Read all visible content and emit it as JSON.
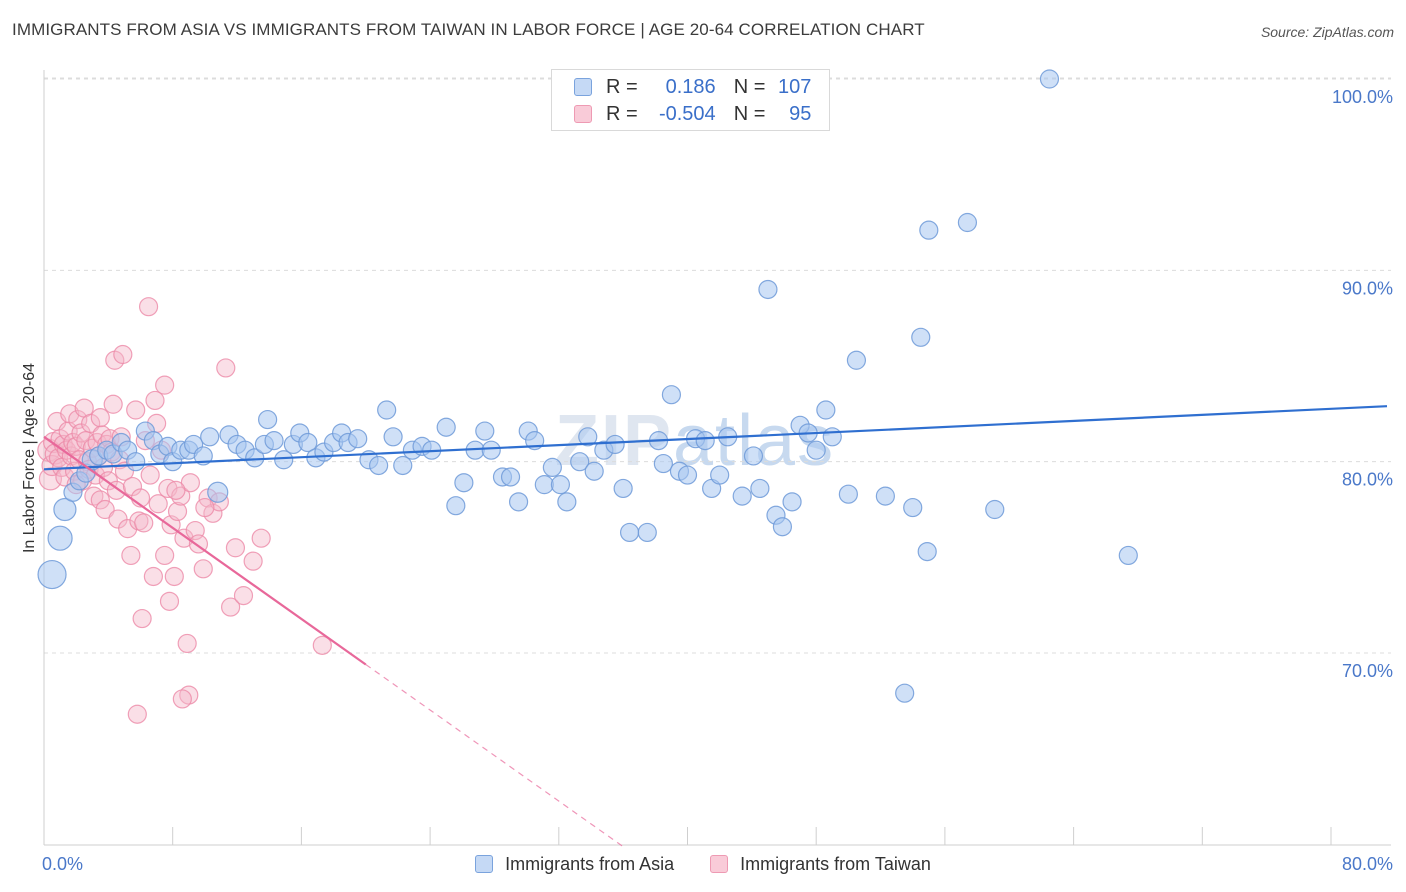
{
  "title": "IMMIGRANTS FROM ASIA VS IMMIGRANTS FROM TAIWAN IN LABOR FORCE | AGE 20-64 CORRELATION CHART",
  "source": "Source: ZipAtlas.com",
  "watermark": {
    "part1": "ZIP",
    "part2": "atlas"
  },
  "legend": {
    "rows": [
      {
        "r_label": "R =",
        "r_value": "0.186",
        "n_label": "N =",
        "n_value": "107",
        "color": "#a8c6f0"
      },
      {
        "r_label": "R =",
        "r_value": "-0.504",
        "n_label": "N =",
        "n_value": "95",
        "color": "#f5b7c9"
      }
    ]
  },
  "bottom_legend": [
    "Immigrants from Asia",
    "Immigrants from Taiwan"
  ],
  "colors": {
    "asia_fill": "#a8c6f0",
    "asia_stroke": "#6f9ad8",
    "asia_line": "#2f6fd0",
    "taiwan_fill": "#f5b7c9",
    "taiwan_stroke": "#ec8aa8",
    "taiwan_line": "#e8689a",
    "tick_text": "#4a78c9",
    "grid": "#dcdcdc"
  },
  "chart_data": {
    "type": "scatter",
    "title": "IMMIGRANTS FROM ASIA VS IMMIGRANTS FROM TAIWAN IN LABOR FORCE | AGE 20-64 CORRELATION CHART",
    "xlabel": "",
    "ylabel": "In Labor Force | Age 20-64",
    "xlim": [
      0,
      80
    ],
    "ylim": [
      60.5,
      101.5
    ],
    "x_ticks_labeled": [
      "0.0%",
      "80.0%"
    ],
    "y_ticks": [
      70,
      80,
      90,
      100
    ],
    "y_tick_labels": [
      "70.0%",
      "80.0%",
      "90.0%",
      "100.0%"
    ],
    "grid": "horizontal dashed",
    "legend_position": "top-center",
    "series": [
      {
        "name": "Immigrants from Asia",
        "R": 0.186,
        "N": 107,
        "trend": {
          "x": [
            0,
            80
          ],
          "y": [
            79.6,
            82.9
          ],
          "dashed_x": []
        },
        "points": [
          [
            0.5,
            74.1,
            14
          ],
          [
            1.0,
            76.0,
            12
          ],
          [
            1.3,
            77.5,
            11
          ],
          [
            1.8,
            78.4,
            9
          ],
          [
            2.2,
            79.0,
            9
          ],
          [
            2.6,
            79.4,
            9
          ],
          [
            3.0,
            80.1,
            10
          ],
          [
            3.4,
            80.3,
            9
          ],
          [
            3.9,
            80.6,
            9
          ],
          [
            4.3,
            80.4,
            9
          ],
          [
            4.8,
            81.0,
            9
          ],
          [
            5.2,
            80.6,
            9
          ],
          [
            5.7,
            80.0,
            9
          ],
          [
            6.3,
            81.6,
            9
          ],
          [
            6.8,
            81.1,
            9
          ],
          [
            7.2,
            80.4,
            9
          ],
          [
            7.7,
            80.8,
            9
          ],
          [
            8.0,
            80.0,
            9
          ],
          [
            8.5,
            80.6,
            9
          ],
          [
            9.0,
            80.6,
            9
          ],
          [
            9.3,
            80.9,
            9
          ],
          [
            9.9,
            80.3,
            9
          ],
          [
            10.3,
            81.3,
            9
          ],
          [
            10.8,
            78.4,
            10
          ],
          [
            11.5,
            81.4,
            9
          ],
          [
            12.0,
            80.9,
            9
          ],
          [
            12.5,
            80.6,
            9
          ],
          [
            13.1,
            80.2,
            9
          ],
          [
            13.7,
            80.9,
            9
          ],
          [
            13.9,
            82.2,
            9
          ],
          [
            14.3,
            81.1,
            9
          ],
          [
            14.9,
            80.1,
            9
          ],
          [
            15.5,
            80.9,
            9
          ],
          [
            15.9,
            81.5,
            9
          ],
          [
            16.4,
            81.0,
            9
          ],
          [
            16.9,
            80.2,
            9
          ],
          [
            17.4,
            80.5,
            9
          ],
          [
            18.0,
            81.0,
            9
          ],
          [
            18.5,
            81.5,
            9
          ],
          [
            18.9,
            81.0,
            9
          ],
          [
            19.5,
            81.2,
            9
          ],
          [
            20.2,
            80.1,
            9
          ],
          [
            20.8,
            79.8,
            9
          ],
          [
            21.3,
            82.7,
            9
          ],
          [
            21.7,
            81.3,
            9
          ],
          [
            22.3,
            79.8,
            9
          ],
          [
            22.9,
            80.6,
            9
          ],
          [
            23.5,
            80.8,
            9
          ],
          [
            24.1,
            80.6,
            9
          ],
          [
            25.0,
            81.8,
            9
          ],
          [
            25.6,
            77.7,
            9
          ],
          [
            26.1,
            78.9,
            9
          ],
          [
            26.8,
            80.6,
            9
          ],
          [
            27.4,
            81.6,
            9
          ],
          [
            27.8,
            80.6,
            9
          ],
          [
            28.5,
            79.2,
            9
          ],
          [
            29.0,
            79.2,
            9
          ],
          [
            29.5,
            77.9,
            9
          ],
          [
            30.1,
            81.6,
            9
          ],
          [
            30.5,
            81.1,
            9
          ],
          [
            31.1,
            78.8,
            9
          ],
          [
            31.6,
            79.7,
            9
          ],
          [
            32.1,
            78.8,
            9
          ],
          [
            32.5,
            77.9,
            9
          ],
          [
            33.3,
            80.0,
            9
          ],
          [
            33.8,
            81.3,
            9
          ],
          [
            34.2,
            79.5,
            9
          ],
          [
            34.8,
            80.6,
            9
          ],
          [
            35.5,
            80.9,
            9
          ],
          [
            36.0,
            78.6,
            9
          ],
          [
            36.4,
            76.3,
            9
          ],
          [
            37.5,
            76.3,
            9
          ],
          [
            38.2,
            81.1,
            9
          ],
          [
            38.5,
            79.9,
            9
          ],
          [
            39.0,
            83.5,
            9
          ],
          [
            39.5,
            79.5,
            9
          ],
          [
            40.0,
            79.3,
            9
          ],
          [
            40.5,
            81.2,
            9
          ],
          [
            41.1,
            81.1,
            9
          ],
          [
            41.5,
            78.6,
            9
          ],
          [
            42.0,
            79.3,
            9
          ],
          [
            42.5,
            81.3,
            9
          ],
          [
            43.4,
            78.2,
            9
          ],
          [
            44.1,
            80.3,
            9
          ],
          [
            44.5,
            78.6,
            9
          ],
          [
            45.0,
            89.0,
            9
          ],
          [
            45.5,
            77.2,
            9
          ],
          [
            45.9,
            76.6,
            9
          ],
          [
            46.5,
            77.9,
            9
          ],
          [
            47.0,
            81.9,
            9
          ],
          [
            47.5,
            81.5,
            9
          ],
          [
            48.0,
            80.6,
            9
          ],
          [
            48.6,
            82.7,
            9
          ],
          [
            49.0,
            81.3,
            9
          ],
          [
            50.0,
            78.3,
            9
          ],
          [
            50.5,
            85.3,
            9
          ],
          [
            52.3,
            78.2,
            9
          ],
          [
            54.0,
            77.6,
            9
          ],
          [
            54.5,
            86.5,
            9
          ],
          [
            55.0,
            92.1,
            9
          ],
          [
            53.5,
            67.9,
            9
          ],
          [
            54.9,
            75.3,
            9
          ],
          [
            57.4,
            92.5,
            9
          ],
          [
            59.1,
            77.5,
            9
          ],
          [
            48.2,
            100.0,
            9
          ],
          [
            62.5,
            100.0,
            9
          ],
          [
            67.4,
            75.1,
            9
          ]
        ]
      },
      {
        "name": "Immigrants from Taiwan",
        "R": -0.504,
        "N": 95,
        "trend": {
          "x": [
            0,
            20
          ],
          "y": [
            81.3,
            69.4
          ],
          "dashed_x": [
            20,
            36
          ]
        },
        "points": [
          [
            0.3,
            80.6,
            11
          ],
          [
            0.4,
            79.1,
            11
          ],
          [
            0.5,
            79.8,
            10
          ],
          [
            0.6,
            81.0,
            10
          ],
          [
            0.7,
            80.4,
            10
          ],
          [
            0.8,
            82.1,
            9
          ],
          [
            0.9,
            80.2,
            9
          ],
          [
            1.0,
            81.2,
            9
          ],
          [
            1.1,
            79.7,
            9
          ],
          [
            1.2,
            80.9,
            9
          ],
          [
            1.3,
            79.2,
            9
          ],
          [
            1.4,
            80.6,
            9
          ],
          [
            1.5,
            81.6,
            9
          ],
          [
            1.6,
            82.5,
            9
          ],
          [
            1.7,
            80.3,
            9
          ],
          [
            1.8,
            81.0,
            9
          ],
          [
            1.9,
            79.5,
            9
          ],
          [
            2.0,
            80.8,
            9
          ],
          [
            2.1,
            82.2,
            9
          ],
          [
            2.2,
            80.1,
            9
          ],
          [
            2.3,
            81.5,
            9
          ],
          [
            2.4,
            79.0,
            9
          ],
          [
            2.5,
            82.8,
            9
          ],
          [
            2.6,
            81.1,
            9
          ],
          [
            2.7,
            80.0,
            9
          ],
          [
            2.8,
            79.6,
            9
          ],
          [
            2.9,
            82.0,
            9
          ],
          [
            3.0,
            80.7,
            9
          ],
          [
            3.1,
            78.2,
            9
          ],
          [
            3.2,
            79.3,
            9
          ],
          [
            3.3,
            81.0,
            9
          ],
          [
            3.4,
            80.3,
            9
          ],
          [
            3.5,
            78.0,
            9
          ],
          [
            3.6,
            81.4,
            9
          ],
          [
            3.7,
            79.7,
            9
          ],
          [
            3.8,
            77.5,
            9
          ],
          [
            3.9,
            80.9,
            9
          ],
          [
            4.0,
            79.0,
            9
          ],
          [
            4.1,
            81.2,
            9
          ],
          [
            4.2,
            80.5,
            9
          ],
          [
            4.3,
            83.0,
            9
          ],
          [
            4.4,
            85.3,
            9
          ],
          [
            4.5,
            78.5,
            9
          ],
          [
            4.6,
            77.0,
            9
          ],
          [
            4.7,
            80.1,
            9
          ],
          [
            4.8,
            81.3,
            9
          ],
          [
            5.0,
            79.5,
            9
          ],
          [
            5.2,
            76.5,
            9
          ],
          [
            5.4,
            75.1,
            9
          ],
          [
            5.5,
            78.7,
            9
          ],
          [
            5.7,
            82.7,
            9
          ],
          [
            5.9,
            76.9,
            9
          ],
          [
            6.0,
            78.1,
            9
          ],
          [
            6.1,
            71.8,
            9
          ],
          [
            6.3,
            81.1,
            9
          ],
          [
            6.5,
            88.1,
            9
          ],
          [
            6.6,
            79.3,
            9
          ],
          [
            6.8,
            74.0,
            9
          ],
          [
            7.0,
            82.0,
            9
          ],
          [
            7.1,
            77.8,
            9
          ],
          [
            7.3,
            80.6,
            9
          ],
          [
            7.5,
            75.1,
            9
          ],
          [
            7.7,
            78.6,
            9
          ],
          [
            7.9,
            76.7,
            9
          ],
          [
            8.1,
            74.0,
            9
          ],
          [
            8.3,
            77.4,
            9
          ],
          [
            8.5,
            78.2,
            9
          ],
          [
            8.7,
            76.0,
            9
          ],
          [
            8.9,
            70.5,
            9
          ],
          [
            9.1,
            78.9,
            9
          ],
          [
            9.4,
            76.4,
            9
          ],
          [
            9.6,
            75.7,
            9
          ],
          [
            9.9,
            74.4,
            9
          ],
          [
            10.2,
            78.1,
            9
          ],
          [
            10.5,
            77.3,
            9
          ],
          [
            10.9,
            77.9,
            9
          ],
          [
            11.3,
            84.9,
            9
          ],
          [
            11.6,
            72.4,
            9
          ],
          [
            11.9,
            75.5,
            9
          ],
          [
            12.4,
            73.0,
            9
          ],
          [
            13.0,
            74.8,
            9
          ],
          [
            13.5,
            76.0,
            9
          ],
          [
            7.8,
            72.7,
            9
          ],
          [
            8.2,
            78.5,
            9
          ],
          [
            9.0,
            67.8,
            9
          ],
          [
            5.8,
            66.8,
            9
          ],
          [
            6.2,
            76.8,
            9
          ],
          [
            10.0,
            77.6,
            9
          ],
          [
            3.5,
            82.3,
            9
          ],
          [
            2.0,
            78.8,
            9
          ],
          [
            8.6,
            67.6,
            9
          ],
          [
            17.3,
            70.4,
            9
          ],
          [
            7.5,
            84.0,
            9
          ],
          [
            6.9,
            83.2,
            9
          ],
          [
            4.9,
            85.6,
            9
          ]
        ]
      }
    ]
  }
}
